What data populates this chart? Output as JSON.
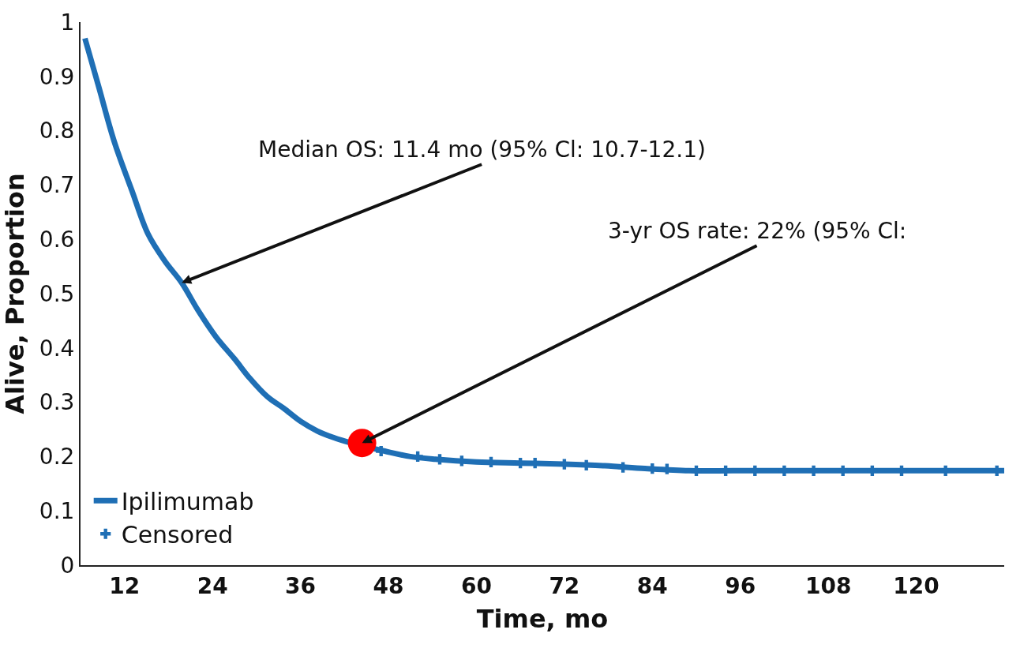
{
  "chart_data": {
    "type": "line",
    "xlabel": "Time, mo",
    "ylabel": "Alive, Proportion",
    "xlim": [
      6,
      132
    ],
    "xticks": [
      12,
      24,
      36,
      48,
      60,
      72,
      84,
      96,
      108,
      120
    ],
    "ylim": [
      0,
      1
    ],
    "yticks": [
      0,
      0.1,
      0.2,
      0.3,
      0.4,
      0.5,
      0.6,
      0.7,
      0.8,
      0.9,
      1
    ],
    "legend": "bottom left",
    "series": [
      {
        "name": "Ipilimumab",
        "color": "#1f6fb5",
        "marker": "none",
        "x": [
          6.6,
          8.5,
          10.6,
          13,
          15.2,
          17.5,
          19.8,
          22,
          24.5,
          27,
          29.1,
          31.5,
          33.7,
          36,
          38.3,
          40.5,
          42.9,
          47.5,
          51,
          54.4,
          60,
          66,
          72,
          77.5,
          83,
          89,
          95,
          100.6,
          112,
          132
        ],
        "values": [
          0.97,
          0.88,
          0.78,
          0.69,
          0.61,
          0.56,
          0.52,
          0.47,
          0.42,
          0.38,
          0.344,
          0.31,
          0.289,
          0.265,
          0.247,
          0.235,
          0.225,
          0.21,
          0.2,
          0.195,
          0.19,
          0.188,
          0.186,
          0.183,
          0.178,
          0.174,
          0.174,
          0.174,
          0.174,
          0.174
        ]
      },
      {
        "name": "Censored",
        "type": "scatter",
        "color": "#1f6fb5",
        "marker": "cross",
        "x": [
          47,
          52,
          55,
          58,
          62,
          66,
          68,
          72,
          75,
          80,
          84,
          86,
          90,
          94,
          98,
          102,
          106,
          110,
          114,
          118,
          124,
          131
        ],
        "values": [
          0.21,
          0.2,
          0.195,
          0.192,
          0.19,
          0.188,
          0.188,
          0.186,
          0.184,
          0.18,
          0.178,
          0.177,
          0.174,
          0.174,
          0.174,
          0.174,
          0.174,
          0.174,
          0.174,
          0.174,
          0.174,
          0.174
        ]
      },
      {
        "type": "scatter",
        "color": "#ff0000",
        "marker": "circle",
        "x": [
          44.4
        ],
        "values": [
          0.225
        ]
      }
    ],
    "annotations": [
      {
        "text": "Median OS: 11.4 mo (95% Cl: 10.7-12.1)",
        "x": 19.8,
        "y": 0.52
      },
      {
        "text": "3-yr OS rate: 22% (95% Cl:",
        "x": 44.4,
        "y": 0.225
      }
    ]
  }
}
